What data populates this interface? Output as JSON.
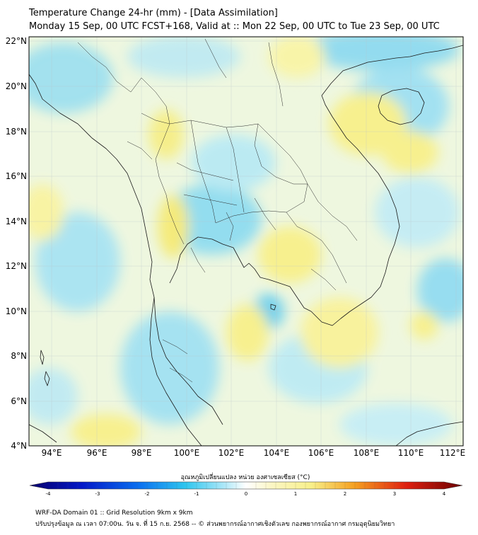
{
  "header": {
    "title": "Temperature Change 24-hr (mm) - [Data Assimilation]",
    "subtitle": "Monday 15 Sep, 00 UTC FCST+168, Valid at :: Mon 22 Sep, 00 UTC to Tue 23 Sep, 00 UTC"
  },
  "map": {
    "lat_labels": [
      "22°N",
      "20°N",
      "18°N",
      "16°N",
      "14°N",
      "12°N",
      "10°N",
      "8°N",
      "6°N",
      "4°N"
    ],
    "lon_labels": [
      "94°E",
      "96°E",
      "98°E",
      "100°E",
      "102°E",
      "104°E",
      "106°E",
      "108°E",
      "110°E",
      "112°E"
    ]
  },
  "colorbar": {
    "title": "อุณหภูมิเปลี่ยนแปลง หน่วย องศาเซลเซียส (°C)",
    "ticks": [
      "-4",
      "-3",
      "-2",
      "-1",
      "0",
      "1",
      "2",
      "3",
      "4"
    ],
    "colors": {
      "cold_max": "#08006b",
      "cyan": "#2ec6ef",
      "neutral": "#ffffff",
      "yellow": "#f8f08a",
      "hot_max": "#6b0000"
    }
  },
  "footer": {
    "line1": "WRF-DA Domain 01 :: Grid Resolution 9km x 9km",
    "line2": "ปรับปรุงข้อมูล ณ เวลา 07:00น. วัน จ. ที่ 15 ก.ย. 2568 -- © ส่วนพยากรณ์อากาศเชิงตัวเลข กองพยากรณ์อากาศ กรมอุตุนิยมวิทยา"
  }
}
